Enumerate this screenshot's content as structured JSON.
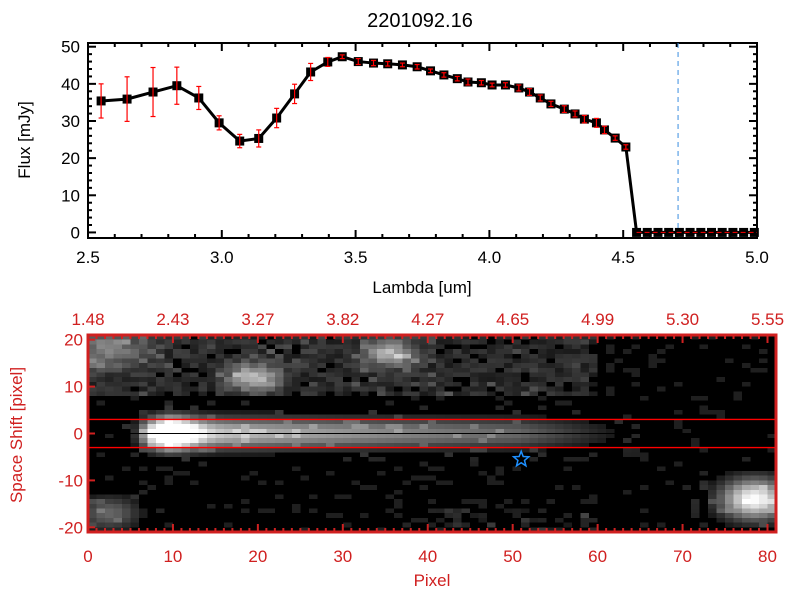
{
  "colors": {
    "axis_red": "#d02020",
    "errorbar": "#ff0000",
    "line": "#000000",
    "marker_line": "#3a8ee0",
    "star": "#1e90ff",
    "aperture": "#ff0000"
  },
  "chart_data": [
    {
      "type": "line",
      "title": "2201092.16",
      "xlabel": "Lambda [um]",
      "ylabel": "Flux [mJy]",
      "xlim": [
        2.5,
        5.0
      ],
      "ylim": [
        -1.5,
        51
      ],
      "xticks": [
        "2.5",
        "3.0",
        "3.5",
        "4.0",
        "4.5",
        "5.0"
      ],
      "yticks": [
        "0",
        "10",
        "20",
        "30",
        "40",
        "50"
      ],
      "grid": false,
      "vertical_dashed_line_x": 4.705,
      "zero_dashed_line_from": 4.55,
      "series": [
        {
          "x": [
            2.549,
            2.646,
            2.743,
            2.832,
            2.914,
            2.99,
            3.067,
            3.138,
            3.205,
            3.272,
            3.332,
            3.396,
            3.45,
            3.51,
            3.567,
            3.62,
            3.675,
            3.73,
            3.78,
            3.83,
            3.88,
            3.92,
            3.97,
            4.01,
            4.06,
            4.11,
            4.15,
            4.19,
            4.23,
            4.28,
            4.32,
            4.355,
            4.4,
            4.43,
            4.47,
            4.51,
            4.55,
            4.59,
            4.63,
            4.67,
            4.71,
            4.75,
            4.79,
            4.83,
            4.87,
            4.91,
            4.95,
            4.99
          ],
          "y": [
            35.4,
            35.9,
            37.8,
            39.5,
            36.2,
            29.5,
            24.6,
            25.3,
            30.8,
            37.3,
            43.2,
            45.9,
            47.3,
            46.0,
            45.6,
            45.4,
            45.1,
            44.6,
            43.5,
            42.4,
            41.4,
            40.5,
            40.3,
            39.7,
            39.7,
            38.9,
            37.8,
            36.2,
            34.6,
            33.2,
            31.9,
            30.5,
            29.5,
            27.6,
            25.4,
            23.0,
            0,
            0,
            0,
            0,
            0,
            0,
            0,
            0,
            0,
            0,
            0,
            0
          ],
          "yerr": [
            4.6,
            6.0,
            6.6,
            5.0,
            3.1,
            1.9,
            1.8,
            2.3,
            2.6,
            2.6,
            2.3,
            1.2,
            0.5,
            0.8,
            0.7,
            0.6,
            0.5,
            0.6,
            0.5,
            0.6,
            0.6,
            0.8,
            0.6,
            0.5,
            0.6,
            0.8,
            0.9,
            0.8,
            0.7,
            0.9,
            0.8,
            1.0,
            1.2,
            1.0,
            0.6,
            0.6,
            0,
            0,
            0,
            0,
            0,
            0,
            0,
            0,
            0,
            0,
            0,
            0
          ]
        }
      ]
    },
    {
      "type": "heatmap",
      "xlabel": "Pixel",
      "ylabel": "Space Shift [pixel]",
      "xlim": [
        0,
        81
      ],
      "ylim": [
        -21,
        21
      ],
      "xticks": [
        "0",
        "10",
        "20",
        "30",
        "40",
        "50",
        "60",
        "70",
        "80"
      ],
      "yticks": [
        "-20",
        "-10",
        "0",
        "10",
        "20"
      ],
      "top_axis_ticks": [
        "1.48",
        "2.43",
        "3.27",
        "3.82",
        "4.27",
        "4.65",
        "4.99",
        "5.30",
        "5.55"
      ],
      "colormap": "grayscale",
      "aperture_lines_y": [
        3,
        -3
      ],
      "center_line_y": 0,
      "star_marker": {
        "x": 51,
        "y": -5.5
      }
    }
  ]
}
